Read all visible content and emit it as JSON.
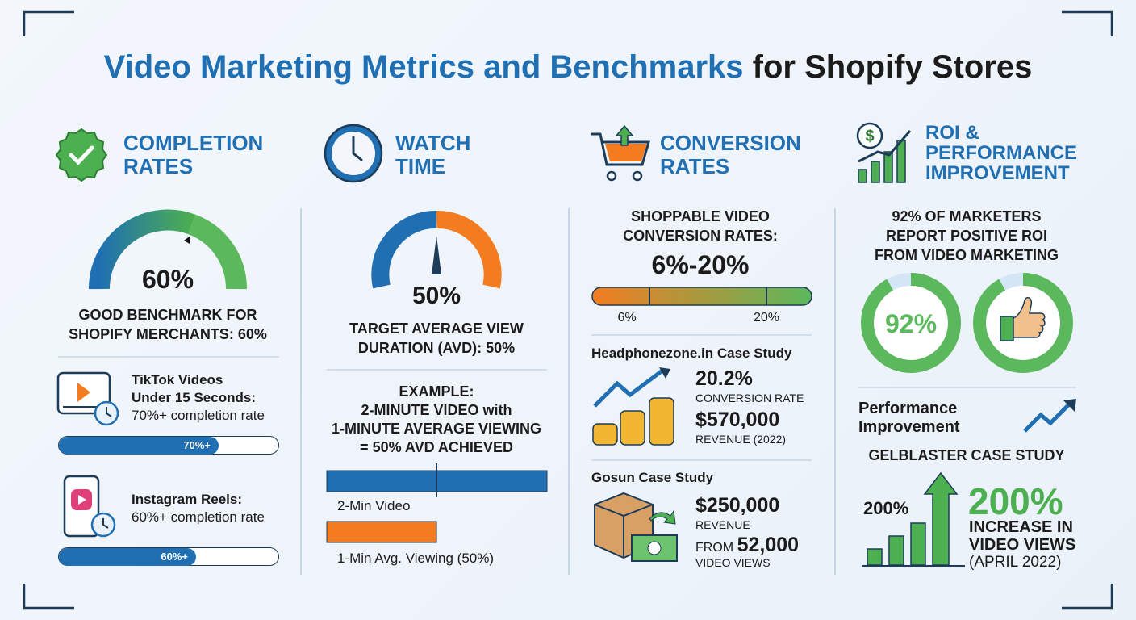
{
  "title": {
    "highlight": "Video Marketing Metrics and Benchmarks",
    "rest": "for Shopify Stores"
  },
  "columns": [
    {
      "heading": [
        "COMPLETION",
        "RATES"
      ],
      "gauge_label": "60%",
      "benchmark": [
        "GOOD BENCHMARK FOR",
        "SHOPIFY MERCHANTS: 60%"
      ],
      "items": [
        {
          "title": [
            "TikTok Videos",
            "Under 15 Seconds:"
          ],
          "detail": "70%+ completion rate",
          "bar_label": "70%+"
        },
        {
          "title": [
            "Instagram Reels:"
          ],
          "detail": "60%+ completion rate",
          "bar_label": "60%+"
        }
      ]
    },
    {
      "heading": [
        "WATCH",
        "TIME"
      ],
      "gauge_label": "50%",
      "target": [
        "TARGET AVERAGE VIEW",
        "DURATION (AVD): 50%"
      ],
      "example": [
        "EXAMPLE:",
        "2-MINUTE VIDEO with",
        "1-MINUTE AVERAGE VIEWING",
        "= 50% AVD ACHIEVED"
      ],
      "bar_labels": [
        "2-Min Video",
        "1-Min Avg. Viewing (50%)"
      ]
    },
    {
      "heading": [
        "CONVERSION",
        "RATES"
      ],
      "subtitle": [
        "SHOPPABLE VIDEO",
        "CONVERSION RATES:"
      ],
      "range": "6%-20%",
      "range_ticks": [
        "6%",
        "20%"
      ],
      "cases": [
        {
          "title": "Headphonezone.in Case Study",
          "stats": [
            {
              "value": "20.2%",
              "label": "CONVERSION RATE"
            },
            {
              "value": "$570,000",
              "label": "REVENUE (2022)"
            }
          ]
        },
        {
          "title": "Gosun Case Study",
          "stats": [
            {
              "value": "$250,000",
              "label": "REVENUE"
            },
            {
              "prefix": "FROM",
              "value": "52,000",
              "label": "VIDEO VIEWS"
            }
          ]
        }
      ]
    },
    {
      "heading": [
        "ROI &",
        "PERFORMANCE",
        "IMPROVEMENT"
      ],
      "statement": [
        "92% OF MARKETERS",
        "REPORT POSITIVE ROI",
        "FROM VIDEO MARKETING"
      ],
      "donut_label": "92%",
      "performance": [
        "Performance",
        "Improvement"
      ],
      "case_title": "GELBLASTER CASE STUDY",
      "chart_label": "200%",
      "big_value": "200%",
      "big_label": [
        "INCREASE IN",
        "VIDEO VIEWS"
      ],
      "date": "(APRIL 2022)"
    }
  ]
}
